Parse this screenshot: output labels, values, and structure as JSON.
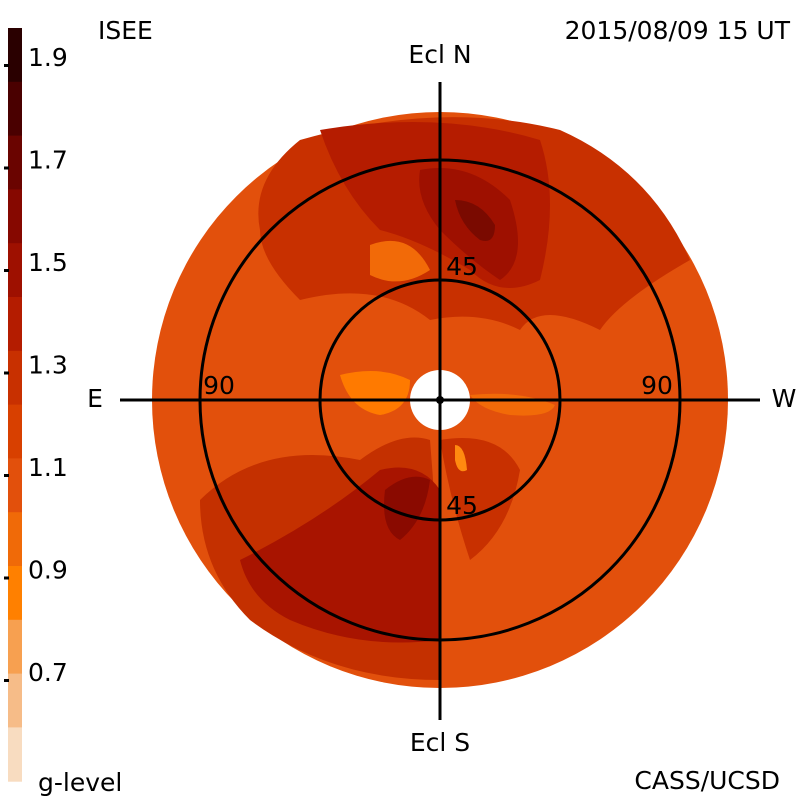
{
  "header": {
    "left": "ISEE",
    "right": "2015/08/09 15 UT"
  },
  "colorbar": {
    "ticks": [
      "1.9",
      "1.7",
      "1.5",
      "1.3",
      "1.1",
      "0.9",
      "0.7"
    ],
    "label": "g-level"
  },
  "map": {
    "north": "Ecl N",
    "south": "Ecl S",
    "east": "E",
    "west": "W",
    "ring_labels": {
      "left": "90",
      "right": "90",
      "top": "45",
      "bottom": "45"
    }
  },
  "footer": {
    "right": "CASS/UCSD"
  }
}
